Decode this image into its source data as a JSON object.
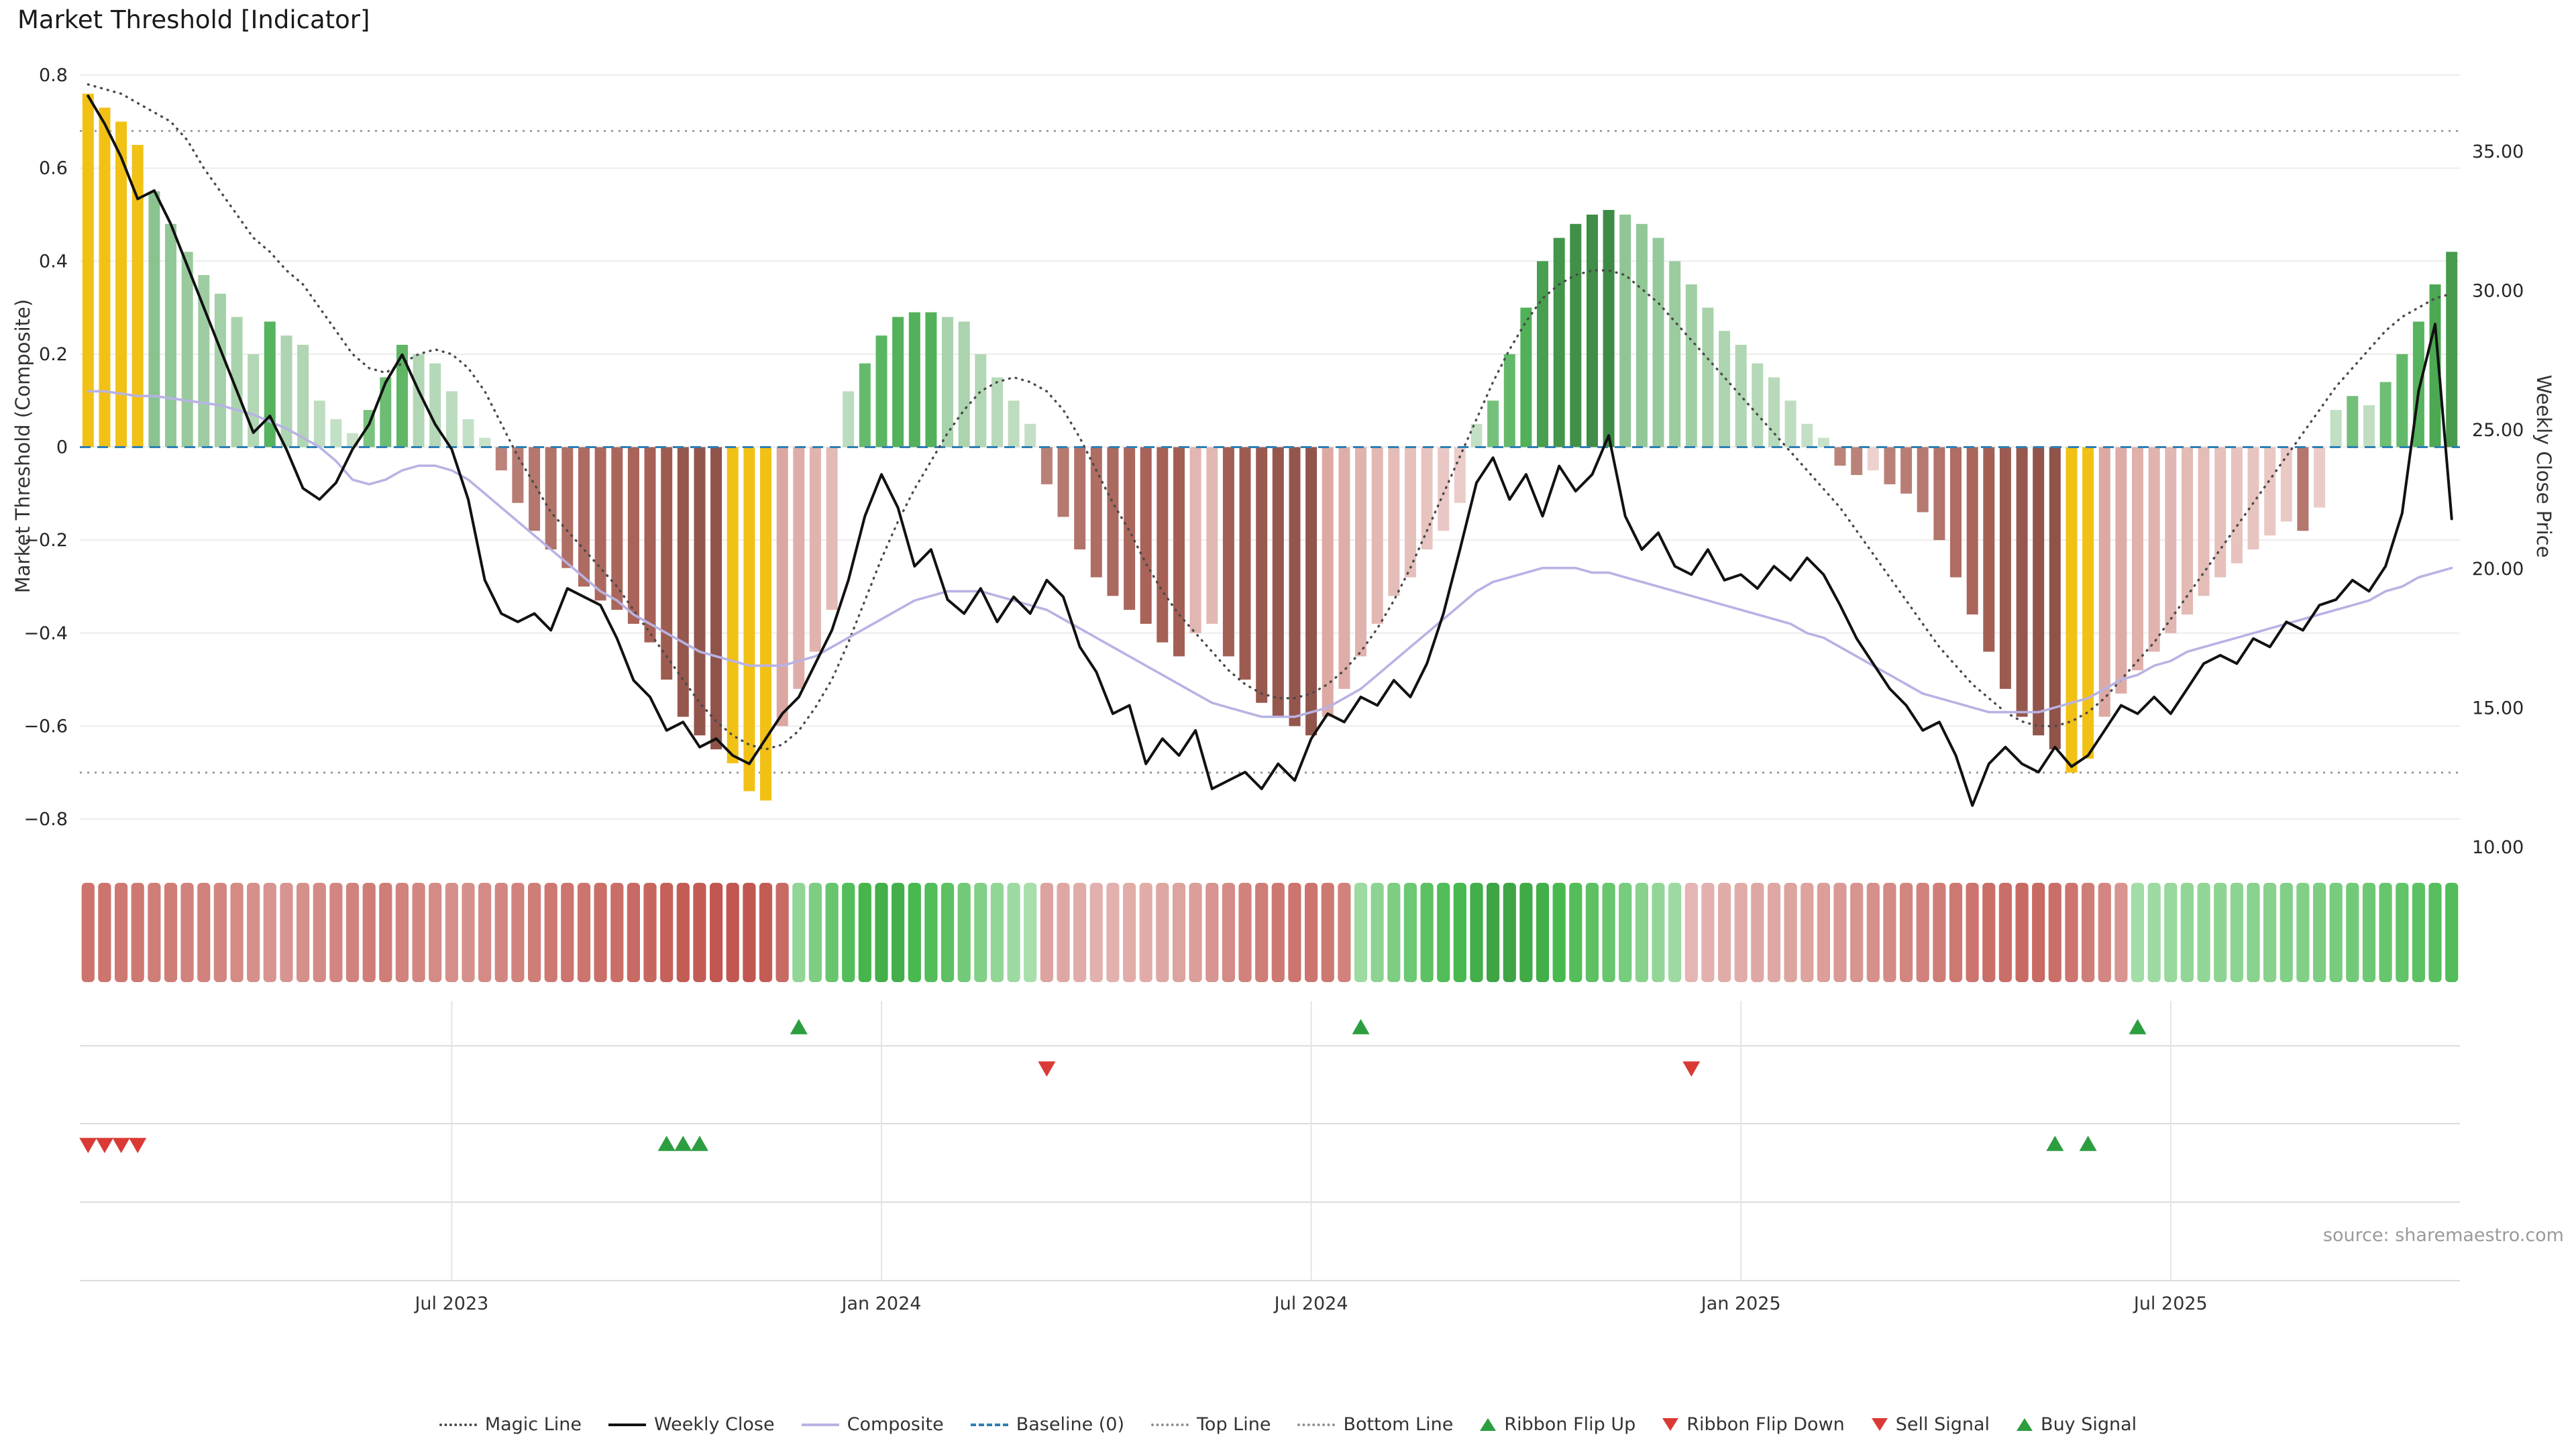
{
  "title": "Market Threshold [Indicator]",
  "source_note": "source: sharemaestro.com",
  "axes": {
    "left_title": "Market Threshold (Composite)",
    "right_title": "Weekly Close Price",
    "left_ticks": [
      {
        "label": "0.8",
        "value": 0.8
      },
      {
        "label": "0.6",
        "value": 0.6
      },
      {
        "label": "0.4",
        "value": 0.4
      },
      {
        "label": "0.2",
        "value": 0.2
      },
      {
        "label": "0",
        "value": 0
      },
      {
        "label": "−0.2",
        "value": -0.2
      },
      {
        "label": "−0.4",
        "value": -0.4
      },
      {
        "label": "−0.6",
        "value": -0.6
      },
      {
        "label": "−0.8",
        "value": -0.8
      }
    ],
    "right_ticks": [
      {
        "label": "35.00",
        "value": 35
      },
      {
        "label": "30.00",
        "value": 30
      },
      {
        "label": "25.00",
        "value": 25
      },
      {
        "label": "20.00",
        "value": 20
      },
      {
        "label": "15.00",
        "value": 15
      },
      {
        "label": "10.00",
        "value": 10
      }
    ],
    "x_ticks": [
      {
        "label": "Jul 2023",
        "week": 22
      },
      {
        "label": "Jan 2024",
        "week": 48
      },
      {
        "label": "Jul 2024",
        "week": 74
      },
      {
        "label": "Jan 2025",
        "week": 100
      },
      {
        "label": "Jul 2025",
        "week": 126
      }
    ]
  },
  "chart_data": {
    "type": "bar-line-combo",
    "weeks": 144,
    "left_axis_range": [
      -0.8,
      0.8
    ],
    "right_axis_range": [
      10,
      37.75
    ],
    "baseline": 0,
    "top_line": 0.68,
    "bottom_line": -0.7,
    "threshold_bars": [
      0.76,
      0.73,
      0.7,
      0.65,
      0.55,
      0.48,
      0.42,
      0.37,
      0.33,
      0.28,
      0.2,
      0.27,
      0.24,
      0.22,
      0.1,
      0.06,
      0.03,
      0.08,
      0.15,
      0.22,
      0.2,
      0.18,
      0.12,
      0.06,
      0.02,
      -0.05,
      -0.12,
      -0.18,
      -0.22,
      -0.26,
      -0.3,
      -0.33,
      -0.35,
      -0.38,
      -0.42,
      -0.5,
      -0.58,
      -0.62,
      -0.65,
      -0.68,
      -0.74,
      -0.76,
      -0.6,
      -0.52,
      -0.44,
      -0.35,
      0.12,
      0.18,
      0.24,
      0.28,
      0.29,
      0.29,
      0.28,
      0.27,
      0.2,
      0.15,
      0.1,
      0.05,
      -0.08,
      -0.15,
      -0.22,
      -0.28,
      -0.32,
      -0.35,
      -0.38,
      -0.42,
      -0.45,
      -0.4,
      -0.38,
      -0.45,
      -0.5,
      -0.55,
      -0.58,
      -0.6,
      -0.62,
      -0.58,
      -0.52,
      -0.45,
      -0.38,
      -0.32,
      -0.28,
      -0.22,
      -0.18,
      -0.12,
      0.05,
      0.1,
      0.2,
      0.3,
      0.4,
      0.45,
      0.48,
      0.5,
      0.51,
      0.5,
      0.48,
      0.45,
      0.4,
      0.35,
      0.3,
      0.25,
      0.22,
      0.18,
      0.15,
      0.1,
      0.05,
      0.02,
      -0.04,
      -0.06,
      -0.05,
      -0.08,
      -0.1,
      -0.14,
      -0.2,
      -0.28,
      -0.36,
      -0.44,
      -0.52,
      -0.58,
      -0.62,
      -0.65,
      -0.7,
      -0.67,
      -0.58,
      -0.53,
      -0.48,
      -0.44,
      -0.4,
      -0.36,
      -0.32,
      -0.28,
      -0.25,
      -0.22,
      -0.19,
      -0.16,
      -0.18,
      -0.13,
      0.08,
      0.11,
      0.09,
      0.14,
      0.2,
      0.27,
      0.35,
      0.42
    ],
    "yellow_weeks": [
      0,
      1,
      2,
      3,
      39,
      40,
      41,
      120,
      121
    ],
    "weekly_close": [
      37.0,
      36.0,
      34.8,
      33.3,
      33.6,
      32.4,
      30.9,
      29.4,
      27.9,
      26.4,
      24.9,
      25.5,
      24.3,
      22.9,
      22.5,
      23.1,
      24.3,
      25.2,
      26.7,
      27.7,
      26.4,
      25.2,
      24.3,
      22.5,
      19.6,
      18.4,
      18.1,
      18.4,
      17.8,
      19.3,
      19.0,
      18.7,
      17.5,
      16.0,
      15.4,
      14.2,
      14.5,
      13.6,
      13.9,
      13.3,
      13.0,
      13.9,
      14.8,
      15.4,
      16.6,
      17.8,
      19.6,
      21.9,
      23.4,
      22.2,
      20.1,
      20.7,
      18.9,
      18.4,
      19.3,
      18.1,
      19.0,
      18.4,
      19.6,
      19.0,
      17.2,
      16.3,
      14.8,
      15.1,
      13.0,
      13.9,
      13.3,
      14.2,
      12.1,
      12.4,
      12.7,
      12.1,
      13.0,
      12.4,
      13.9,
      14.8,
      14.5,
      15.4,
      15.1,
      16.0,
      15.4,
      16.6,
      18.4,
      20.7,
      23.1,
      24.0,
      22.5,
      23.4,
      21.9,
      23.7,
      22.8,
      23.4,
      24.8,
      21.9,
      20.7,
      21.3,
      20.1,
      19.8,
      20.7,
      19.6,
      19.8,
      19.3,
      20.1,
      19.6,
      20.4,
      19.8,
      18.7,
      17.5,
      16.6,
      15.7,
      15.1,
      14.2,
      14.5,
      13.3,
      11.5,
      13.0,
      13.6,
      13.0,
      12.7,
      13.6,
      12.9,
      13.3,
      14.2,
      15.1,
      14.8,
      15.4,
      14.8,
      15.7,
      16.6,
      16.9,
      16.6,
      17.5,
      17.2,
      18.1,
      17.8,
      18.7,
      18.9,
      19.6,
      19.2,
      20.1,
      22.0,
      26.4,
      28.8,
      21.8
    ],
    "magic_line": [
      0.78,
      0.77,
      0.76,
      0.74,
      0.72,
      0.7,
      0.66,
      0.6,
      0.55,
      0.5,
      0.45,
      0.42,
      0.38,
      0.35,
      0.3,
      0.25,
      0.2,
      0.17,
      0.16,
      0.18,
      0.2,
      0.21,
      0.2,
      0.17,
      0.12,
      0.05,
      -0.02,
      -0.08,
      -0.14,
      -0.18,
      -0.22,
      -0.26,
      -0.3,
      -0.35,
      -0.4,
      -0.45,
      -0.5,
      -0.55,
      -0.59,
      -0.62,
      -0.64,
      -0.65,
      -0.64,
      -0.61,
      -0.56,
      -0.5,
      -0.42,
      -0.33,
      -0.24,
      -0.16,
      -0.09,
      -0.03,
      0.03,
      0.08,
      0.12,
      0.14,
      0.15,
      0.14,
      0.12,
      0.08,
      0.02,
      -0.05,
      -0.12,
      -0.18,
      -0.25,
      -0.31,
      -0.36,
      -0.4,
      -0.44,
      -0.48,
      -0.51,
      -0.53,
      -0.54,
      -0.54,
      -0.53,
      -0.51,
      -0.48,
      -0.44,
      -0.39,
      -0.33,
      -0.26,
      -0.18,
      -0.1,
      -0.02,
      0.06,
      0.14,
      0.21,
      0.27,
      0.32,
      0.35,
      0.37,
      0.38,
      0.38,
      0.37,
      0.34,
      0.31,
      0.27,
      0.23,
      0.19,
      0.15,
      0.11,
      0.07,
      0.03,
      -0.01,
      -0.05,
      -0.09,
      -0.13,
      -0.18,
      -0.23,
      -0.28,
      -0.33,
      -0.38,
      -0.43,
      -0.47,
      -0.51,
      -0.54,
      -0.57,
      -0.59,
      -0.6,
      -0.6,
      -0.59,
      -0.57,
      -0.54,
      -0.5,
      -0.46,
      -0.42,
      -0.37,
      -0.32,
      -0.27,
      -0.22,
      -0.17,
      -0.12,
      -0.07,
      -0.02,
      0.03,
      0.08,
      0.13,
      0.17,
      0.21,
      0.25,
      0.28,
      0.3,
      0.32,
      0.33
    ],
    "composite": [
      0.12,
      0.12,
      0.115,
      0.11,
      0.11,
      0.105,
      0.1,
      0.095,
      0.09,
      0.08,
      0.07,
      0.055,
      0.04,
      0.02,
      0.0,
      -0.03,
      -0.07,
      -0.08,
      -0.07,
      -0.05,
      -0.04,
      -0.04,
      -0.05,
      -0.07,
      -0.1,
      -0.13,
      -0.16,
      -0.19,
      -0.22,
      -0.25,
      -0.28,
      -0.31,
      -0.33,
      -0.36,
      -0.38,
      -0.4,
      -0.42,
      -0.44,
      -0.45,
      -0.46,
      -0.47,
      -0.47,
      -0.47,
      -0.46,
      -0.45,
      -0.43,
      -0.41,
      -0.39,
      -0.37,
      -0.35,
      -0.33,
      -0.32,
      -0.31,
      -0.31,
      -0.31,
      -0.32,
      -0.33,
      -0.34,
      -0.35,
      -0.37,
      -0.39,
      -0.41,
      -0.43,
      -0.45,
      -0.47,
      -0.49,
      -0.51,
      -0.53,
      -0.55,
      -0.56,
      -0.57,
      -0.58,
      -0.58,
      -0.58,
      -0.57,
      -0.56,
      -0.54,
      -0.52,
      -0.49,
      -0.46,
      -0.43,
      -0.4,
      -0.37,
      -0.34,
      -0.31,
      -0.29,
      -0.28,
      -0.27,
      -0.26,
      -0.26,
      -0.26,
      -0.27,
      -0.27,
      -0.28,
      -0.29,
      -0.3,
      -0.31,
      -0.32,
      -0.33,
      -0.34,
      -0.35,
      -0.36,
      -0.37,
      -0.38,
      -0.4,
      -0.41,
      -0.43,
      -0.45,
      -0.47,
      -0.49,
      -0.51,
      -0.53,
      -0.54,
      -0.55,
      -0.56,
      -0.57,
      -0.57,
      -0.57,
      -0.57,
      -0.56,
      -0.55,
      -0.54,
      -0.52,
      -0.5,
      -0.49,
      -0.47,
      -0.46,
      -0.44,
      -0.43,
      -0.42,
      -0.41,
      -0.4,
      -0.39,
      -0.38,
      -0.37,
      -0.36,
      -0.35,
      -0.34,
      -0.33,
      -0.31,
      -0.3,
      -0.28,
      -0.27,
      -0.26
    ],
    "ribbon": [
      -2.2,
      -2.2,
      -2.1,
      -2.1,
      -2.0,
      -2.0,
      -1.9,
      -1.9,
      -1.8,
      -1.7,
      -1.6,
      -1.5,
      -1.5,
      -1.6,
      -1.7,
      -1.8,
      -1.9,
      -2.0,
      -2.0,
      -1.9,
      -1.8,
      -1.7,
      -1.6,
      -1.6,
      -1.7,
      -1.8,
      -1.9,
      -2.0,
      -2.1,
      -2.2,
      -2.2,
      -2.3,
      -2.3,
      -2.4,
      -2.5,
      -2.6,
      -2.7,
      -2.7,
      -2.8,
      -2.8,
      -2.8,
      -2.7,
      -2.4,
      1.2,
      1.6,
      2.0,
      2.4,
      2.7,
      2.8,
      2.8,
      2.6,
      2.4,
      2.2,
      1.8,
      1.5,
      1.2,
      1.0,
      0.8,
      -1.2,
      -1.1,
      -1.0,
      -0.9,
      -0.9,
      -1.0,
      -1.0,
      -1.1,
      -1.2,
      -1.3,
      -1.5,
      -1.7,
      -1.9,
      -2.0,
      -2.1,
      -2.2,
      -2.2,
      -2.1,
      -1.9,
      1.0,
      1.3,
      1.6,
      1.9,
      2.2,
      2.4,
      2.6,
      2.8,
      3.0,
      3.0,
      2.9,
      2.8,
      2.6,
      2.4,
      2.2,
      2.0,
      1.7,
      1.4,
      1.2,
      1.0,
      -0.8,
      -0.9,
      -1.0,
      -1.0,
      -1.1,
      -1.1,
      -1.2,
      -1.2,
      -1.3,
      -1.4,
      -1.5,
      -1.6,
      -1.7,
      -1.8,
      -1.9,
      -2.0,
      -2.1,
      -2.2,
      -2.3,
      -2.3,
      -2.4,
      -2.4,
      -2.3,
      -2.2,
      -2.0,
      -1.8,
      -1.5,
      0.9,
      1.0,
      1.1,
      1.2,
      1.2,
      1.3,
      1.3,
      1.4,
      1.4,
      1.5,
      1.5,
      1.6,
      1.7,
      1.8,
      1.9,
      2.0,
      2.1,
      2.2,
      2.3,
      2.4
    ],
    "signals": {
      "ribbon_flip_up": [
        43,
        77,
        124
      ],
      "ribbon_flip_down": [
        58,
        97
      ],
      "sell": [
        0,
        1,
        2,
        3
      ],
      "buy": [
        35,
        36,
        37,
        119,
        121
      ]
    }
  },
  "colors": {
    "gold": "#f2c115",
    "weekly_close": "#111111",
    "magic_line": "#4a4a4a",
    "composite_line": "#b8b2e4",
    "baseline": "#2d7fb5",
    "top_bottom": "#909090",
    "buy_green": "#2c9e3f",
    "sell_red": "#d93a36",
    "grid": "#ececec",
    "signal_grid": "#dcdcdc"
  },
  "legend": [
    {
      "label": "Magic Line",
      "type": "dotted",
      "color": "#4a4a4a"
    },
    {
      "label": "Weekly Close",
      "type": "solid",
      "color": "#111111"
    },
    {
      "label": "Composite",
      "type": "solid",
      "color": "#b8b2e4"
    },
    {
      "label": "Baseline (0)",
      "type": "dashed",
      "color": "#2d7fb5"
    },
    {
      "label": "Top Line",
      "type": "dotted",
      "color": "#909090"
    },
    {
      "label": "Bottom Line",
      "type": "dotted",
      "color": "#909090"
    },
    {
      "label": "Ribbon Flip Up",
      "type": "tri-up",
      "color": "#2c9e3f"
    },
    {
      "label": "Ribbon Flip Down",
      "type": "tri-down",
      "color": "#d93a36"
    },
    {
      "label": "Sell Signal",
      "type": "tri-down",
      "color": "#d93a36"
    },
    {
      "label": "Buy Signal",
      "type": "tri-up",
      "color": "#2c9e3f"
    }
  ]
}
